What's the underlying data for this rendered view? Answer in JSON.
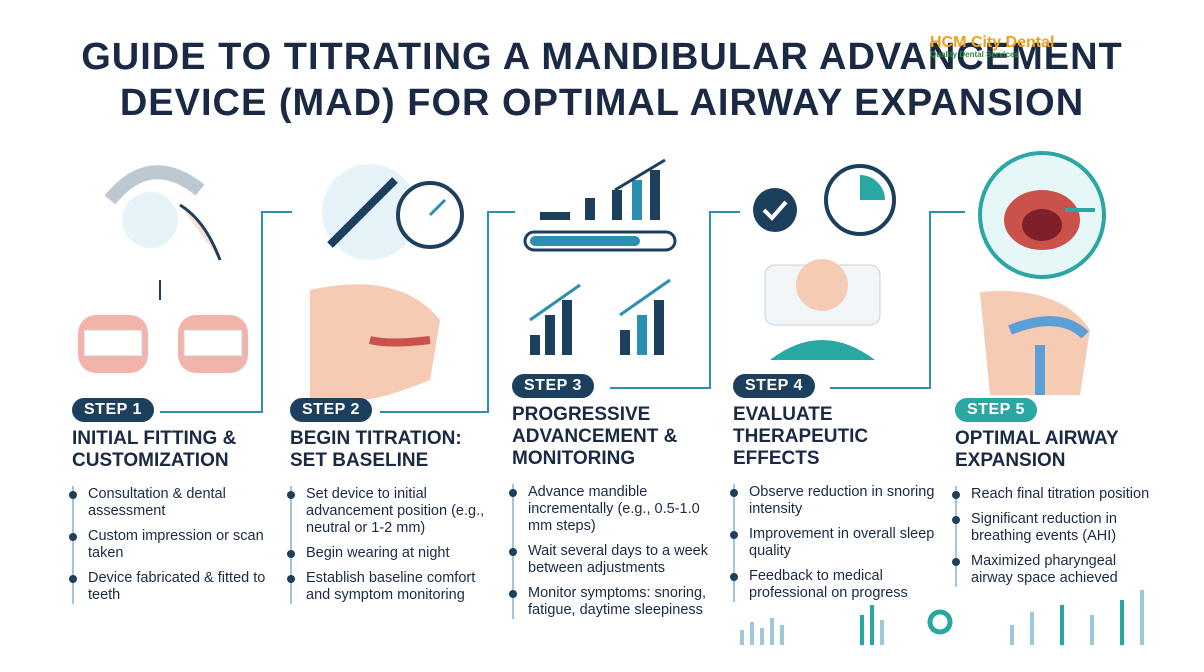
{
  "header": {
    "title": "GUIDE TO TITRATING A MANDIBULAR ADVANCEMENT DEVICE (MAD) FOR OPTIMAL AIRWAY EXPANSION",
    "logo": "HCM City Dental",
    "logo_tagline": "Quality Dental Services"
  },
  "steps": [
    {
      "badge": "STEP 1",
      "title": "INITIAL FITTING & CUSTOMIZATION",
      "bullets": [
        "Consultation & dental assessment",
        "Custom impression or scan taken",
        "Device fabricated & fitted to teeth"
      ]
    },
    {
      "badge": "STEP 2",
      "title": "BEGIN TITRATION: SET BASELINE",
      "bullets": [
        "Set device to initial advancement position (e.g., neutral or 1-2 mm)",
        "Begin wearing at night",
        "Establish baseline comfort and symptom monitoring"
      ]
    },
    {
      "badge": "STEP 3",
      "title": "PROGRESSIVE ADVANCEMENT & MONITORING",
      "bullets": [
        "Advance mandible incrementally (e.g., 0.5-1.0 mm steps)",
        "Wait several days to a week between adjustments",
        "Monitor symptoms: snoring, fatigue, daytime sleepiness"
      ]
    },
    {
      "badge": "STEP 4",
      "title": "EVALUATE THERAPEUTIC EFFECTS",
      "bullets": [
        "Observe reduction in snoring intensity",
        "Improvement in overall sleep quality",
        "Feedback to medical professional on progress"
      ]
    },
    {
      "badge": "STEP 5",
      "title": "OPTIMAL AIRWAY EXPANSION",
      "bullets": [
        "Reach final titration position",
        "Significant reduction in breathing events (AHI)",
        "Maximized pharyngeal airway space achieved"
      ]
    }
  ]
}
